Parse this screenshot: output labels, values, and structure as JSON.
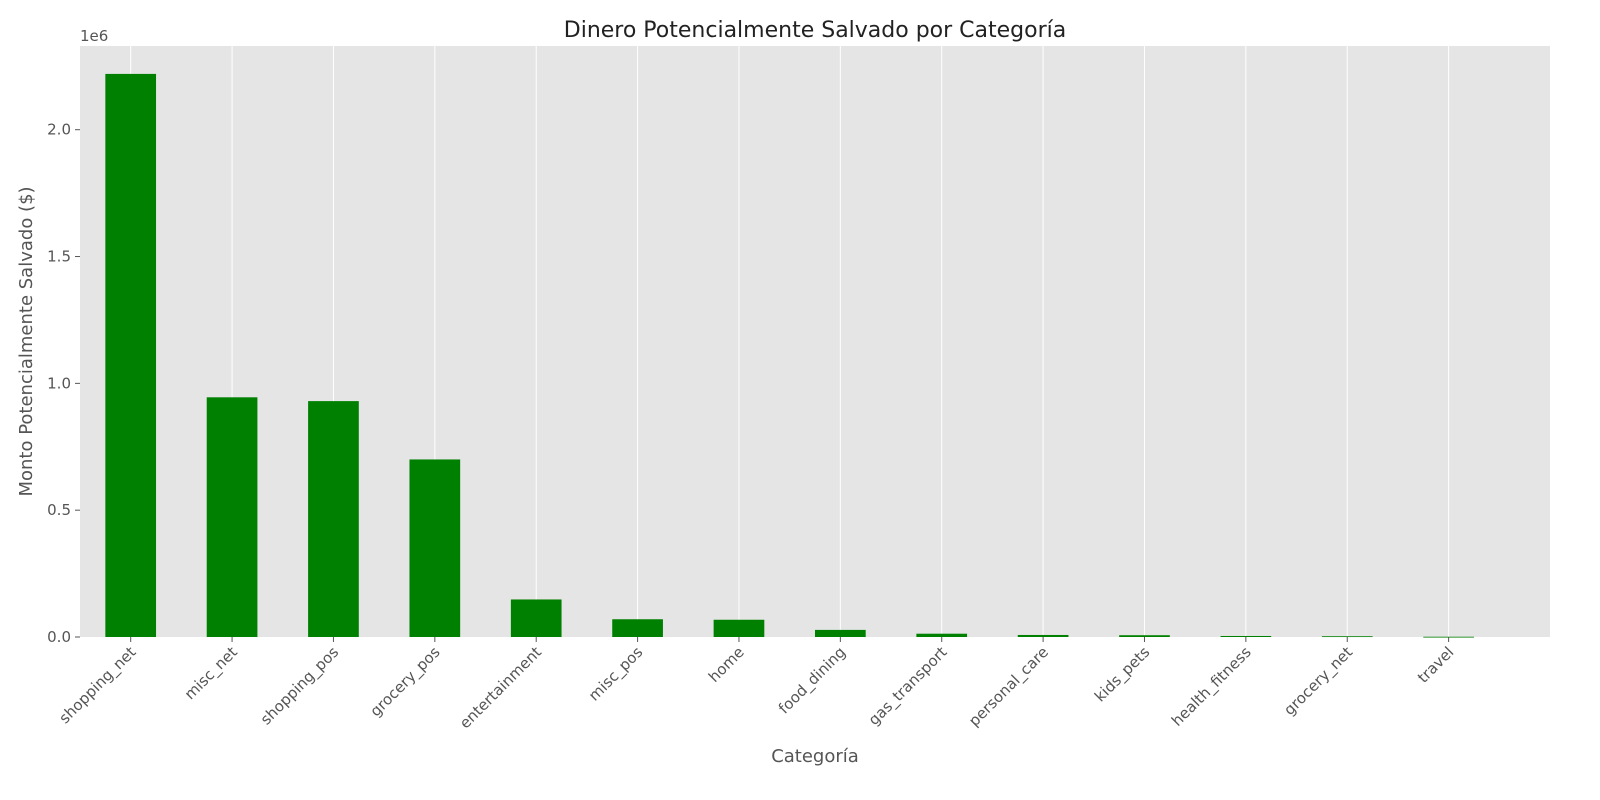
{
  "chart_data": {
    "type": "bar",
    "title": "Dinero Potencialmente Salvado por Categoría",
    "xlabel": "Categoría",
    "ylabel": "Monto Potencialmente Salvado ($)",
    "y_offset_label": "1e6",
    "ylim": [
      0,
      2330000
    ],
    "yticks": [
      0,
      500000,
      1000000,
      1500000,
      2000000
    ],
    "ytick_labels": [
      "0.0",
      "0.5",
      "1.0",
      "1.5",
      "2.0"
    ],
    "categories": [
      "shopping_net",
      "misc_net",
      "shopping_pos",
      "grocery_pos",
      "entertainment",
      "misc_pos",
      "home",
      "food_dining",
      "gas_transport",
      "personal_care",
      "kids_pets",
      "health_fitness",
      "grocery_net",
      "travel"
    ],
    "values": [
      2220000,
      945000,
      930000,
      700000,
      148000,
      70000,
      68000,
      28000,
      13000,
      8000,
      7000,
      4000,
      3000,
      1000
    ],
    "grid": true,
    "colors": {
      "bar": "#008000",
      "plot_background": "#e5e5e5",
      "grid": "#ffffff"
    }
  }
}
